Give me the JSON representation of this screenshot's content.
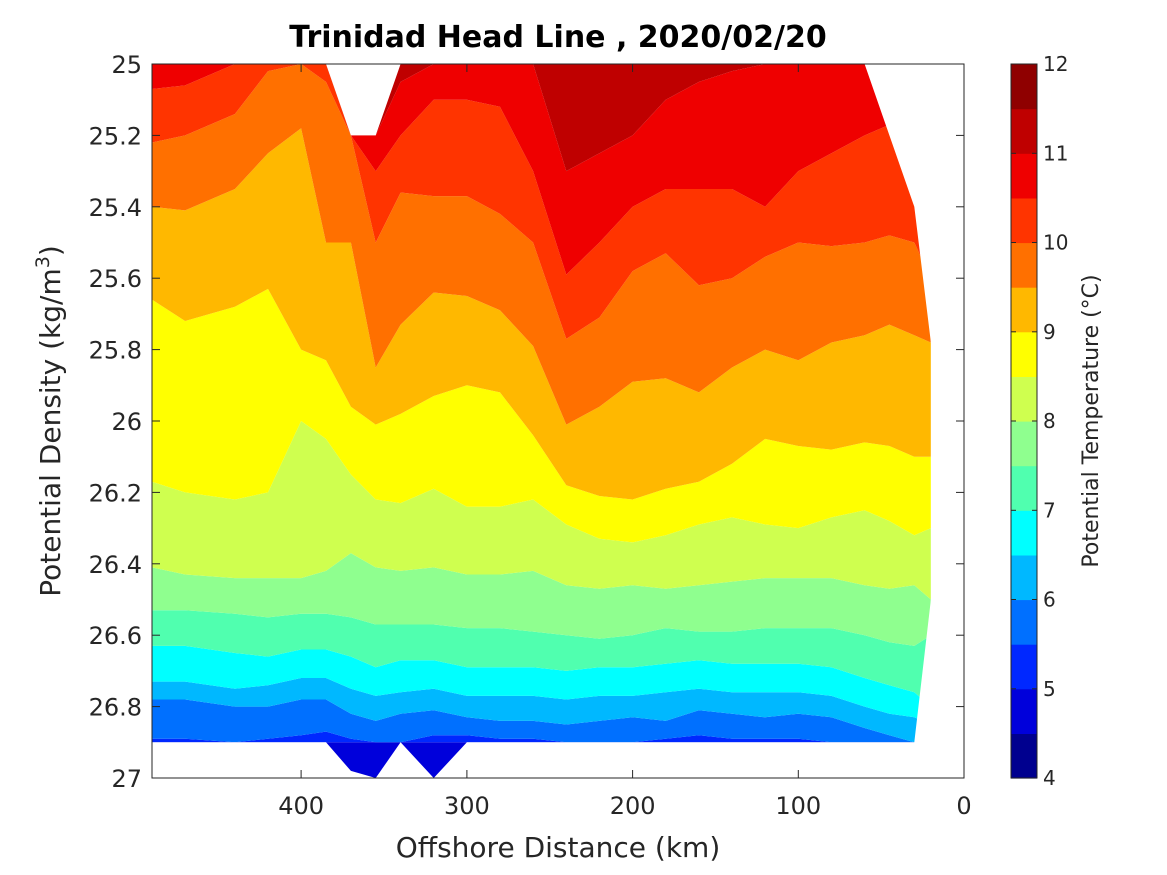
{
  "chart_data": {
    "type": "heatmap",
    "subtype": "filled-contour",
    "title": "Trinidad Head Line , 2020/02/20",
    "xlabel": "Offshore Distance (km)",
    "ylabel_main": "Potential Density (kg/m",
    "ylabel_sup": "3",
    "ylabel_end": ")",
    "colorbar_label": "Potential Temperature (°C)",
    "xlim": [
      490,
      0
    ],
    "ylim": [
      25,
      27
    ],
    "y_reversed": true,
    "x_reversed": true,
    "x_ticks": [
      400,
      300,
      200,
      100,
      0
    ],
    "x_tick_labels": [
      "400",
      "300",
      "200",
      "100",
      "0"
    ],
    "y_ticks": [
      25,
      25.2,
      25.4,
      25.6,
      25.8,
      26,
      26.2,
      26.4,
      26.6,
      26.8,
      27
    ],
    "y_tick_labels": [
      "25",
      "25.2",
      "25.4",
      "25.6",
      "25.8",
      "26",
      "26.2",
      "26.4",
      "26.6",
      "26.8",
      "27"
    ],
    "colorbar_ticks": [
      4,
      5,
      6,
      7,
      8,
      9,
      10,
      11,
      12
    ],
    "colorbar_tick_labels": [
      "4",
      "5",
      "6",
      "7",
      "8",
      "9",
      "10",
      "11",
      "12"
    ],
    "colorbar_range": [
      4,
      12
    ],
    "level_step": 0.5,
    "level_colors": [
      "#00008f",
      "#0000db",
      "#0028ff",
      "#0070ff",
      "#00b8ff",
      "#00ffff",
      "#50ffaf",
      "#8fff8f",
      "#cfff4f",
      "#ffff00",
      "#ffb800",
      "#ff7000",
      "#ff3400",
      "#ef0000",
      "#bf0000",
      "#8f0000"
    ],
    "x_stations": [
      490,
      470,
      440,
      420,
      400,
      385,
      370,
      355,
      340,
      320,
      300,
      280,
      260,
      240,
      220,
      200,
      180,
      160,
      140,
      120,
      100,
      80,
      60,
      45,
      30,
      20
    ],
    "isotherms": [
      {
        "level": 5.0,
        "density": [
          26.9,
          26.9,
          26.9,
          26.9,
          26.9,
          26.9,
          26.9,
          26.9,
          26.9,
          26.9,
          26.9,
          26.9,
          26.9,
          26.9,
          26.9,
          26.9,
          26.9,
          26.9,
          26.9,
          26.9,
          26.9,
          26.9,
          26.9,
          26.9,
          26.9,
          26.9
        ]
      },
      {
        "level": 5.5,
        "density": [
          26.89,
          26.89,
          26.9,
          26.89,
          26.88,
          26.87,
          26.89,
          26.9,
          26.9,
          26.88,
          26.88,
          26.89,
          26.89,
          26.9,
          26.9,
          26.9,
          26.89,
          26.88,
          26.89,
          26.89,
          26.89,
          26.9,
          26.9,
          26.9,
          26.9,
          26.9
        ]
      },
      {
        "level": 6.0,
        "density": [
          26.78,
          26.78,
          26.8,
          26.8,
          26.78,
          26.78,
          26.82,
          26.84,
          26.82,
          26.81,
          26.83,
          26.84,
          26.84,
          26.85,
          26.84,
          26.83,
          26.84,
          26.81,
          26.82,
          26.83,
          26.82,
          26.83,
          26.86,
          26.88,
          26.9,
          26.9
        ]
      },
      {
        "level": 6.5,
        "density": [
          26.73,
          26.73,
          26.75,
          26.74,
          26.72,
          26.72,
          26.75,
          26.77,
          26.76,
          26.75,
          26.77,
          26.77,
          26.77,
          26.78,
          26.77,
          26.77,
          26.76,
          26.75,
          26.76,
          26.76,
          26.76,
          26.77,
          26.8,
          26.82,
          26.83,
          26.85
        ]
      },
      {
        "level": 7.0,
        "density": [
          26.63,
          26.63,
          26.65,
          26.66,
          26.64,
          26.64,
          26.66,
          26.69,
          26.67,
          26.67,
          26.69,
          26.69,
          26.69,
          26.7,
          26.69,
          26.69,
          26.68,
          26.67,
          26.68,
          26.68,
          26.68,
          26.69,
          26.72,
          26.74,
          26.76,
          26.8
        ]
      },
      {
        "level": 7.5,
        "density": [
          26.53,
          26.53,
          26.54,
          26.55,
          26.54,
          26.54,
          26.55,
          26.57,
          26.57,
          26.57,
          26.58,
          26.58,
          26.59,
          26.6,
          26.61,
          26.6,
          26.58,
          26.59,
          26.59,
          26.58,
          26.58,
          26.58,
          26.6,
          26.62,
          26.63,
          26.6
        ]
      },
      {
        "level": 8.0,
        "density": [
          26.41,
          26.43,
          26.44,
          26.44,
          26.44,
          26.42,
          26.37,
          26.41,
          26.42,
          26.41,
          26.43,
          26.43,
          26.42,
          26.46,
          26.47,
          26.46,
          26.47,
          26.46,
          26.45,
          26.44,
          26.44,
          26.44,
          26.46,
          26.47,
          26.46,
          26.5
        ]
      },
      {
        "level": 8.5,
        "density": [
          26.17,
          26.2,
          26.22,
          26.2,
          26.0,
          26.05,
          26.15,
          26.22,
          26.23,
          26.19,
          26.24,
          26.24,
          26.22,
          26.29,
          26.33,
          26.34,
          26.32,
          26.29,
          26.27,
          26.29,
          26.3,
          26.27,
          26.25,
          26.28,
          26.32,
          26.3
        ]
      },
      {
        "level": 9.0,
        "density": [
          25.66,
          25.72,
          25.68,
          25.63,
          25.8,
          25.83,
          25.96,
          26.01,
          25.98,
          25.93,
          25.9,
          25.92,
          26.04,
          26.18,
          26.21,
          26.22,
          26.19,
          26.17,
          26.12,
          26.05,
          26.07,
          26.08,
          26.06,
          26.07,
          26.1,
          26.1
        ]
      },
      {
        "level": 9.5,
        "density": [
          25.4,
          25.41,
          25.35,
          25.25,
          25.18,
          25.5,
          25.5,
          25.85,
          25.73,
          25.64,
          25.65,
          25.69,
          25.79,
          26.01,
          25.96,
          25.89,
          25.88,
          25.92,
          25.85,
          25.8,
          25.83,
          25.78,
          25.76,
          25.73,
          25.76,
          25.78
        ]
      },
      {
        "level": 10.0,
        "density": [
          25.22,
          25.2,
          25.14,
          25.02,
          25.0,
          25.05,
          25.2,
          25.5,
          25.36,
          25.37,
          25.37,
          25.42,
          25.5,
          25.77,
          25.71,
          25.58,
          25.53,
          25.62,
          25.6,
          25.54,
          25.5,
          25.51,
          25.5,
          25.48,
          25.5,
          25.6
        ]
      },
      {
        "level": 10.5,
        "density": [
          25.07,
          25.06,
          25.0,
          25.0,
          25.0,
          25.0,
          25.2,
          25.3,
          25.2,
          25.1,
          25.1,
          25.12,
          25.3,
          25.59,
          25.5,
          25.4,
          25.35,
          25.35,
          25.35,
          25.4,
          25.3,
          25.25,
          25.2,
          25.17,
          25.2,
          25.4
        ]
      },
      {
        "level": 11.0,
        "density": [
          25.0,
          25.0,
          25.0,
          25.0,
          25.0,
          25.0,
          25.2,
          25.2,
          25.05,
          25.0,
          25.0,
          25.0,
          25.0,
          25.3,
          25.25,
          25.2,
          25.1,
          25.05,
          25.02,
          25.0,
          25.0,
          25.0,
          25.0,
          25.0,
          25.0,
          25.0
        ]
      }
    ],
    "data_boundary_top": [
      25.0,
      25.0,
      25.0,
      25.0,
      25.0,
      25.0,
      25.2,
      25.2,
      25.0,
      25.0,
      25.0,
      25.0,
      25.0,
      25.0,
      25.0,
      25.0,
      25.0,
      25.0,
      25.0,
      25.0,
      25.0,
      25.0,
      25.0,
      25.2,
      25.4,
      25.78
    ],
    "data_boundary_bottom": [
      26.9,
      26.9,
      26.9,
      26.9,
      26.9,
      26.9,
      26.98,
      27.0,
      26.9,
      27.0,
      26.9,
      26.9,
      26.9,
      26.9,
      26.9,
      26.9,
      26.9,
      26.9,
      26.9,
      26.9,
      26.9,
      26.9,
      26.9,
      26.9,
      26.9,
      26.5
    ]
  }
}
